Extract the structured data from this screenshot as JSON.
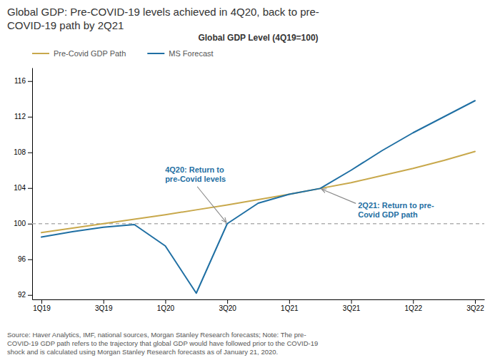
{
  "chart_data": {
    "type": "line",
    "title": "Global GDP: Pre-COVID-19 levels achieved in 4Q20, back to pre-\nCOVID-19 path by 2Q21",
    "subtitle": "Global GDP Level (4Q19=100)",
    "categories": [
      "1Q19",
      null,
      "3Q19",
      null,
      "1Q20",
      null,
      "3Q20",
      null,
      "1Q21",
      null,
      "3Q21",
      null,
      "1Q22",
      null,
      "3Q22"
    ],
    "series": [
      {
        "name": "Pre-Covid GDP Path",
        "color": "#c8a84b",
        "values": [
          99.0,
          99.5,
          100.0,
          100.5,
          101.0,
          101.55,
          102.1,
          102.7,
          103.3,
          103.95,
          104.6,
          105.4,
          106.2,
          107.1,
          108.1
        ]
      },
      {
        "name": "MS Forecast",
        "color": "#1f6fa3",
        "values": [
          98.5,
          99.1,
          99.6,
          99.9,
          97.5,
          92.2,
          100.0,
          102.3,
          103.3,
          103.95,
          106.0,
          108.2,
          110.2,
          112.0,
          113.8
        ]
      }
    ],
    "ylim": [
      91.5,
      117.5
    ],
    "yticks": [
      92,
      96,
      100,
      104,
      108,
      112,
      116
    ],
    "grid": false,
    "legend": "upper left",
    "hline": {
      "y": 100,
      "color": "#b0b0b0",
      "line_style": "dashed"
    },
    "annotations": [
      {
        "text": "4Q20: Return to\npre-Covid levels",
        "x": 6,
        "y": 100.0,
        "color": "#1f6fa3"
      },
      {
        "text": "2Q21: Return to pre-\nCovid GDP path",
        "x": 9.0,
        "y": 103.95,
        "color": "#1f6fa3"
      }
    ],
    "source": "Source: Haver Analytics, IMF, national sources, Morgan Stanley Research forecasts; Note: The pre-\nCOVID-19 GDP path refers to the trajectory that global GDP would have followed prior to the COVID-19\nshock and is calculated using Morgan Stanley Research forecasts as of January 21, 2020."
  }
}
